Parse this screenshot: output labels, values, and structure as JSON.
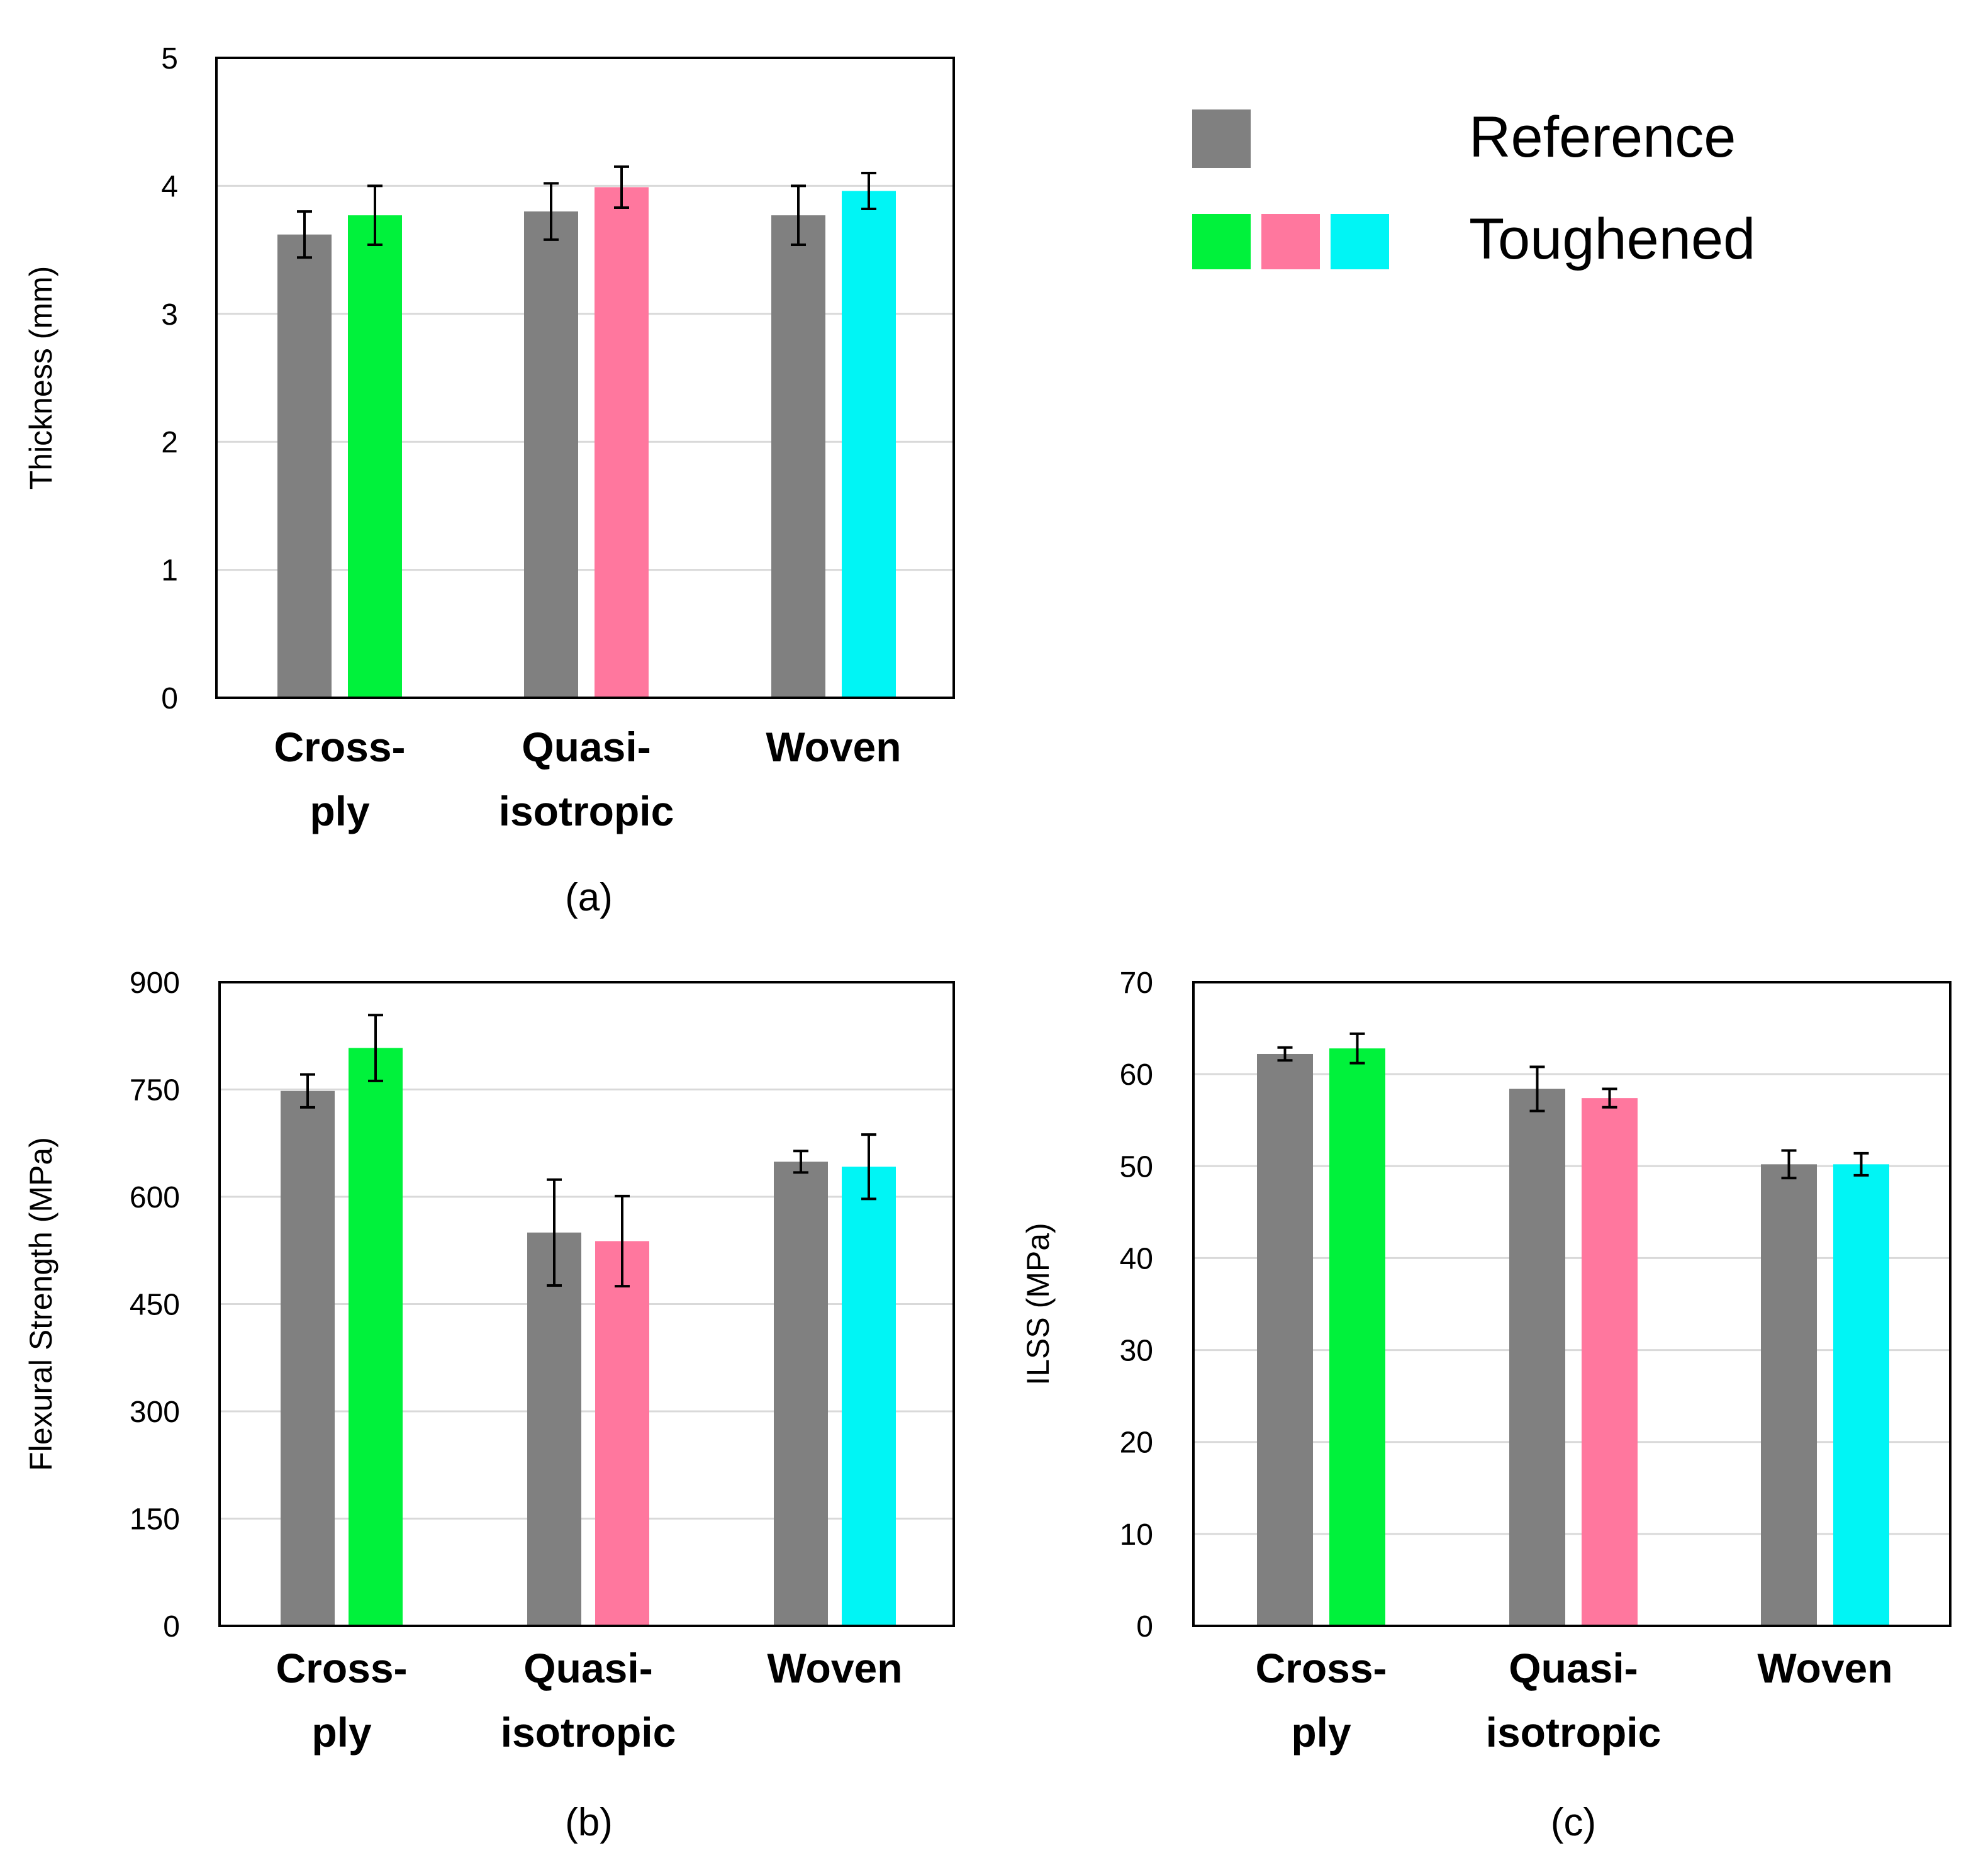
{
  "colors": {
    "reference": "#808080",
    "toughened": [
      "#00F23B",
      "#FF779E",
      "#00F5F5"
    ],
    "grid": "#D9D9D9",
    "axis": "#000000"
  },
  "legend": {
    "reference_label": "Reference",
    "toughened_label": "Toughened"
  },
  "chart_data": [
    {
      "id": "a",
      "type": "bar",
      "caption": "(a)",
      "ylabel": "Thickness (mm)",
      "ylim": [
        0,
        5
      ],
      "yticks": [
        "0",
        "1",
        "2",
        "3",
        "4",
        "5"
      ],
      "categories": [
        {
          "lines": [
            "Cross-",
            "ply"
          ]
        },
        {
          "lines": [
            "Quasi-",
            "isotropic"
          ]
        },
        {
          "lines": [
            "Woven"
          ]
        }
      ],
      "series": [
        {
          "name": "Reference",
          "values": [
            3.62,
            3.8,
            3.77
          ],
          "errors": [
            0.18,
            0.22,
            0.23
          ]
        },
        {
          "name": "Toughened",
          "values": [
            3.77,
            3.99,
            3.96
          ],
          "errors": [
            0.23,
            0.16,
            0.14
          ]
        }
      ],
      "grid": true
    },
    {
      "id": "b",
      "type": "bar",
      "caption": "(b)",
      "ylabel": "Flexural Strength (MPa)",
      "ylim": [
        0,
        900
      ],
      "yticks": [
        "0",
        "150",
        "300",
        "450",
        "600",
        "750",
        "900"
      ],
      "categories": [
        {
          "lines": [
            "Cross-",
            "ply"
          ]
        },
        {
          "lines": [
            "Quasi-",
            "isotropic"
          ]
        },
        {
          "lines": [
            "Woven"
          ]
        }
      ],
      "series": [
        {
          "name": "Reference",
          "values": [
            748,
            550,
            649
          ],
          "errors": [
            23,
            74,
            15
          ]
        },
        {
          "name": "Toughened",
          "values": [
            808,
            538,
            642
          ],
          "errors": [
            46,
            63,
            45
          ]
        }
      ],
      "grid": true
    },
    {
      "id": "c",
      "type": "bar",
      "caption": "(c)",
      "ylabel": "ILSS (MPa)",
      "ylim": [
        0,
        70
      ],
      "yticks": [
        "0",
        "10",
        "20",
        "30",
        "40",
        "50",
        "60",
        "70"
      ],
      "categories": [
        {
          "lines": [
            "Cross-",
            "ply"
          ]
        },
        {
          "lines": [
            "Quasi-",
            "isotropic"
          ]
        },
        {
          "lines": [
            "Woven"
          ]
        }
      ],
      "series": [
        {
          "name": "Reference",
          "values": [
            62.2,
            58.4,
            50.2
          ],
          "errors": [
            0.7,
            2.4,
            1.5
          ]
        },
        {
          "name": "Toughened",
          "values": [
            62.8,
            57.4,
            50.2
          ],
          "errors": [
            1.6,
            1.0,
            1.2
          ]
        }
      ],
      "grid": true
    }
  ]
}
